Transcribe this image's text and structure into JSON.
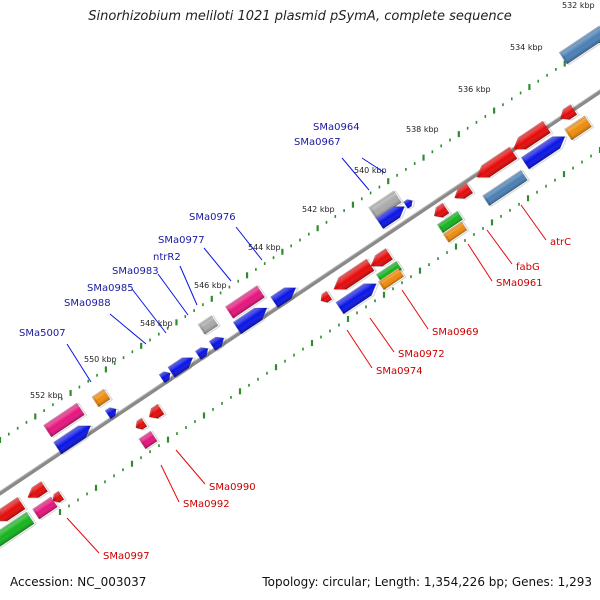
{
  "title": "Sinorhizobium meliloti 1021 plasmid pSymA, complete sequence",
  "footer": {
    "accession": "Accession: NC_003037",
    "summary": "Topology: circular; Length: 1,354,226 bp; Genes: 1,293"
  },
  "colors": {
    "blue": "#0a14e6",
    "red": "#e60a0a",
    "pink": "#e6147d",
    "orange": "#f08c0a",
    "green": "#14b41e",
    "gray": "#aaaaaa",
    "steel": "#4a7fb5",
    "backbone": "#777777",
    "tick": "#2e8b2e",
    "upper_label": "#1a1aa0",
    "lower_label": "#cc0000"
  },
  "kbp_labels": [
    "532 kbp",
    "534 kbp",
    "536 kbp",
    "538 kbp",
    "540 kbp",
    "542 kbp",
    "544 kbp",
    "546 kbp",
    "548 kbp",
    "550 kbp",
    "552 kbp"
  ],
  "upper_genes": [
    "SMa0964",
    "SMa0967",
    "SMa0976",
    "SMa0977",
    "ntrR2",
    "SMa0983",
    "SMa0985",
    "SMa0988",
    "SMa5007"
  ],
  "lower_genes": [
    "atrC",
    "fabG",
    "SMa0961",
    "SMa0969",
    "SMa0972",
    "SMa0974",
    "SMa0990",
    "SMa0992",
    "SMa0997"
  ]
}
